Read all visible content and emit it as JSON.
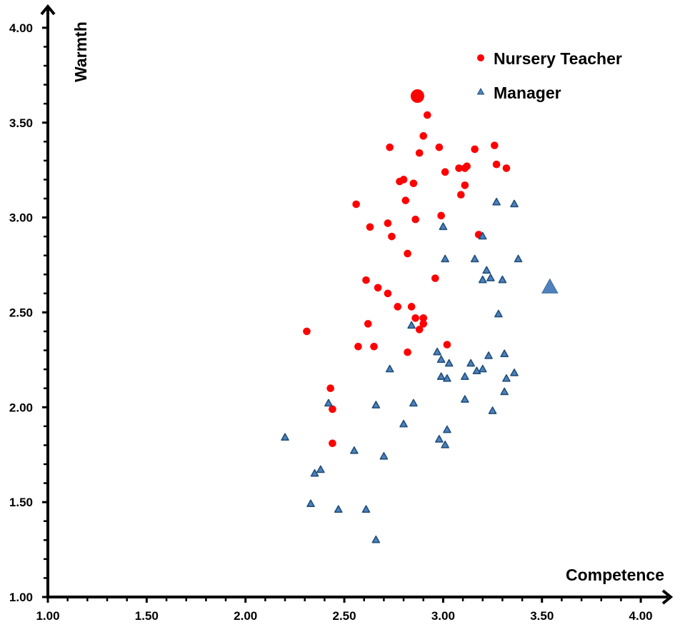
{
  "chart_data": {
    "type": "scatter",
    "title": "",
    "xlabel": "Competence",
    "ylabel": "Warmth",
    "xlim": [
      1.0,
      4.0
    ],
    "ylim": [
      1.0,
      4.0
    ],
    "x_ticks": [
      "1.00",
      "1.50",
      "2.00",
      "2.50",
      "3.00",
      "3.50",
      "4.00"
    ],
    "y_ticks": [
      "1.00",
      "1.50",
      "2.00",
      "2.50",
      "3.00",
      "3.50",
      "4.00"
    ],
    "minor_tick_step": 0.1,
    "grid": false,
    "legend_position": "top-right",
    "colors": {
      "nursery_teacher": "#FF0000",
      "manager_fill": "#4F81BD",
      "manager_edge": "#1F4E79"
    },
    "series": [
      {
        "name": "Nursery Teacher",
        "marker": "circle",
        "color": "#FF0000",
        "mean": {
          "x": 2.87,
          "y": 3.64
        },
        "points": [
          [
            2.92,
            3.54
          ],
          [
            2.9,
            3.43
          ],
          [
            2.73,
            3.37
          ],
          [
            2.88,
            3.34
          ],
          [
            2.98,
            3.37
          ],
          [
            3.16,
            3.36
          ],
          [
            3.26,
            3.38
          ],
          [
            3.01,
            3.24
          ],
          [
            3.08,
            3.26
          ],
          [
            3.11,
            3.26
          ],
          [
            3.12,
            3.27
          ],
          [
            3.27,
            3.28
          ],
          [
            3.32,
            3.26
          ],
          [
            2.78,
            3.19
          ],
          [
            2.8,
            3.2
          ],
          [
            2.85,
            3.18
          ],
          [
            3.11,
            3.17
          ],
          [
            2.56,
            3.07
          ],
          [
            2.81,
            3.09
          ],
          [
            3.09,
            3.12
          ],
          [
            2.86,
            2.99
          ],
          [
            2.99,
            3.01
          ],
          [
            2.72,
            2.97
          ],
          [
            2.63,
            2.95
          ],
          [
            2.74,
            2.9
          ],
          [
            3.18,
            2.91
          ],
          [
            2.82,
            2.81
          ],
          [
            2.61,
            2.67
          ],
          [
            2.67,
            2.63
          ],
          [
            2.72,
            2.6
          ],
          [
            2.96,
            2.68
          ],
          [
            2.77,
            2.53
          ],
          [
            2.84,
            2.53
          ],
          [
            2.86,
            2.47
          ],
          [
            2.9,
            2.47
          ],
          [
            2.9,
            2.44
          ],
          [
            2.88,
            2.41
          ],
          [
            2.62,
            2.44
          ],
          [
            2.57,
            2.32
          ],
          [
            2.65,
            2.32
          ],
          [
            2.82,
            2.29
          ],
          [
            3.02,
            2.33
          ],
          [
            2.31,
            2.4
          ],
          [
            2.43,
            2.1
          ],
          [
            2.44,
            1.99
          ],
          [
            2.44,
            1.81
          ]
        ]
      },
      {
        "name": "Manager",
        "marker": "triangle",
        "color": "#4F81BD",
        "mean": {
          "x": 3.54,
          "y": 2.63
        },
        "points": [
          [
            3.27,
            3.08
          ],
          [
            3.36,
            3.07
          ],
          [
            3.0,
            2.95
          ],
          [
            3.2,
            2.9
          ],
          [
            3.01,
            2.78
          ],
          [
            3.16,
            2.78
          ],
          [
            3.38,
            2.78
          ],
          [
            3.22,
            2.72
          ],
          [
            3.24,
            2.68
          ],
          [
            3.2,
            2.67
          ],
          [
            3.3,
            2.67
          ],
          [
            3.28,
            2.49
          ],
          [
            2.84,
            2.43
          ],
          [
            2.97,
            2.29
          ],
          [
            2.99,
            2.25
          ],
          [
            3.03,
            2.23
          ],
          [
            3.14,
            2.23
          ],
          [
            3.23,
            2.27
          ],
          [
            3.31,
            2.28
          ],
          [
            3.17,
            2.19
          ],
          [
            3.2,
            2.2
          ],
          [
            2.99,
            2.16
          ],
          [
            3.02,
            2.15
          ],
          [
            3.11,
            2.16
          ],
          [
            3.32,
            2.15
          ],
          [
            3.36,
            2.18
          ],
          [
            3.31,
            2.08
          ],
          [
            3.11,
            2.04
          ],
          [
            2.85,
            2.02
          ],
          [
            3.25,
            1.98
          ],
          [
            2.73,
            2.2
          ],
          [
            2.66,
            2.01
          ],
          [
            2.42,
            2.02
          ],
          [
            3.02,
            1.88
          ],
          [
            2.98,
            1.83
          ],
          [
            3.01,
            1.8
          ],
          [
            2.8,
            1.91
          ],
          [
            2.2,
            1.84
          ],
          [
            2.55,
            1.77
          ],
          [
            2.7,
            1.74
          ],
          [
            2.35,
            1.65
          ],
          [
            2.38,
            1.67
          ],
          [
            2.33,
            1.49
          ],
          [
            2.47,
            1.46
          ],
          [
            2.61,
            1.46
          ],
          [
            2.66,
            1.3
          ]
        ]
      }
    ]
  },
  "legend": {
    "items": [
      {
        "label": "Nursery Teacher"
      },
      {
        "label": "Manager"
      }
    ]
  },
  "axes": {
    "x_title": "Competence",
    "y_title": "Warmth"
  }
}
